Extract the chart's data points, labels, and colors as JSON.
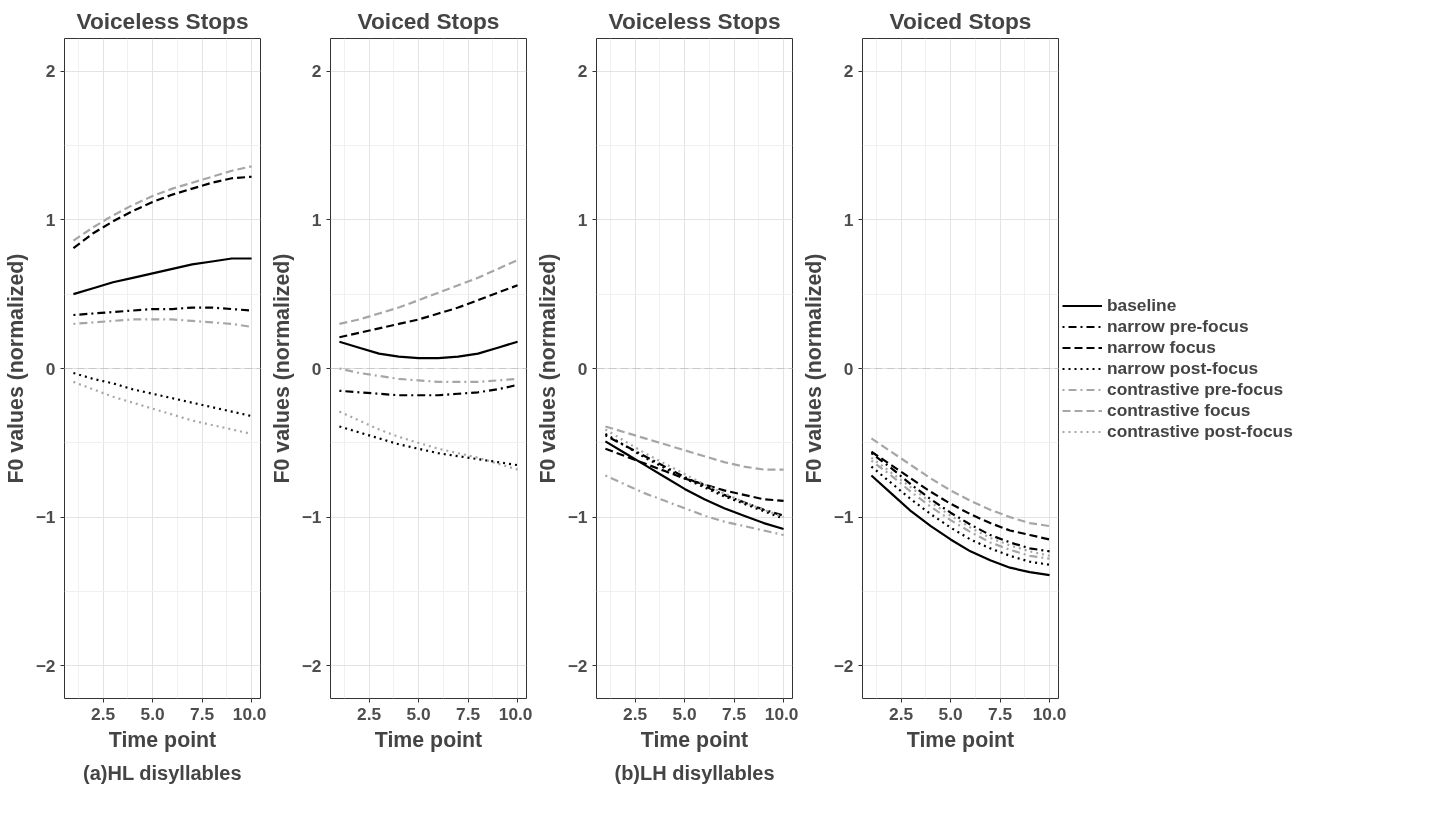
{
  "chart_data": [
    {
      "type": "line",
      "title": "Voiceless Stops",
      "xlabel": "Time point",
      "ylabel": "F0 values (normalized)",
      "annotations": [
        "(a)HL disyllables"
      ],
      "x": [
        1,
        2,
        3,
        4,
        5,
        6,
        7,
        8,
        9,
        10
      ],
      "xlim": [
        0.55,
        10.45
      ],
      "ylim": [
        -2.22,
        2.22
      ],
      "xticks": [
        {
          "value": 2.5,
          "label": "2.5"
        },
        {
          "value": 5,
          "label": "5.0"
        },
        {
          "value": 7.5,
          "label": "7.5"
        },
        {
          "value": 10,
          "label": "10.0"
        }
      ],
      "yticks": [
        -2,
        -1,
        0,
        1,
        2
      ],
      "grid": true,
      "legend": false,
      "ref_lines": [
        {
          "axis": "y",
          "value": 0,
          "color": "#c8c8c8",
          "line_style": "dashed"
        }
      ],
      "series": [
        {
          "color": "#000000",
          "line_style": "solid",
          "values": [
            0.5,
            0.54,
            0.58,
            0.61,
            0.64,
            0.67,
            0.7,
            0.72,
            0.74,
            0.74
          ]
        },
        {
          "color": "#000000",
          "line_style": "dashdot",
          "values": [
            0.36,
            0.37,
            0.38,
            0.39,
            0.4,
            0.4,
            0.41,
            0.41,
            0.4,
            0.39
          ]
        },
        {
          "color": "#000000",
          "line_style": "dashed",
          "values": [
            0.81,
            0.91,
            0.99,
            1.06,
            1.12,
            1.17,
            1.21,
            1.25,
            1.28,
            1.29
          ]
        },
        {
          "color": "#000000",
          "line_style": "dotted",
          "values": [
            -0.03,
            -0.07,
            -0.1,
            -0.14,
            -0.17,
            -0.2,
            -0.23,
            -0.26,
            -0.29,
            -0.32
          ]
        },
        {
          "color": "#a6a6a6",
          "line_style": "dashdot",
          "values": [
            0.3,
            0.31,
            0.32,
            0.33,
            0.33,
            0.33,
            0.32,
            0.31,
            0.3,
            0.28
          ]
        },
        {
          "color": "#a6a6a6",
          "line_style": "dashed",
          "values": [
            0.86,
            0.95,
            1.03,
            1.1,
            1.16,
            1.21,
            1.25,
            1.29,
            1.33,
            1.36
          ]
        },
        {
          "color": "#a6a6a6",
          "line_style": "dotted",
          "values": [
            -0.09,
            -0.14,
            -0.19,
            -0.23,
            -0.27,
            -0.31,
            -0.35,
            -0.38,
            -0.41,
            -0.44
          ]
        }
      ]
    },
    {
      "type": "line",
      "title": "Voiced Stops",
      "xlabel": "Time point",
      "ylabel": "F0 values (normalized)",
      "x": [
        1,
        2,
        3,
        4,
        5,
        6,
        7,
        8,
        9,
        10
      ],
      "xlim": [
        0.55,
        10.45
      ],
      "ylim": [
        -2.22,
        2.22
      ],
      "xticks": [
        {
          "value": 2.5,
          "label": "2.5"
        },
        {
          "value": 5,
          "label": "5.0"
        },
        {
          "value": 7.5,
          "label": "7.5"
        },
        {
          "value": 10,
          "label": "10.0"
        }
      ],
      "yticks": [
        -2,
        -1,
        0,
        1,
        2
      ],
      "grid": true,
      "legend": false,
      "ref_lines": [
        {
          "axis": "y",
          "value": 0,
          "color": "#c8c8c8",
          "line_style": "dashed"
        }
      ],
      "series": [
        {
          "color": "#000000",
          "line_style": "solid",
          "values": [
            0.18,
            0.14,
            0.1,
            0.08,
            0.07,
            0.07,
            0.08,
            0.1,
            0.14,
            0.18
          ]
        },
        {
          "color": "#000000",
          "line_style": "dashdot",
          "values": [
            -0.15,
            -0.16,
            -0.17,
            -0.18,
            -0.18,
            -0.18,
            -0.17,
            -0.16,
            -0.14,
            -0.11
          ]
        },
        {
          "color": "#000000",
          "line_style": "dashed",
          "values": [
            0.21,
            0.24,
            0.27,
            0.3,
            0.33,
            0.37,
            0.41,
            0.46,
            0.51,
            0.56
          ]
        },
        {
          "color": "#000000",
          "line_style": "dotted",
          "values": [
            -0.39,
            -0.43,
            -0.47,
            -0.51,
            -0.54,
            -0.57,
            -0.59,
            -0.61,
            -0.63,
            -0.65
          ]
        },
        {
          "color": "#a6a6a6",
          "line_style": "dashdot",
          "values": [
            0.0,
            -0.03,
            -0.05,
            -0.07,
            -0.08,
            -0.09,
            -0.09,
            -0.09,
            -0.08,
            -0.07
          ]
        },
        {
          "color": "#a6a6a6",
          "line_style": "dashed",
          "values": [
            0.3,
            0.33,
            0.37,
            0.41,
            0.46,
            0.51,
            0.56,
            0.61,
            0.67,
            0.73
          ]
        },
        {
          "color": "#a6a6a6",
          "line_style": "dotted",
          "values": [
            -0.29,
            -0.35,
            -0.41,
            -0.46,
            -0.5,
            -0.54,
            -0.57,
            -0.6,
            -0.64,
            -0.68
          ]
        }
      ]
    },
    {
      "type": "line",
      "title": "Voiceless Stops",
      "xlabel": "Time point",
      "ylabel": "F0 values (normalized)",
      "annotations": [
        "(b)LH disyllables"
      ],
      "x": [
        1,
        2,
        3,
        4,
        5,
        6,
        7,
        8,
        9,
        10
      ],
      "xlim": [
        0.55,
        10.45
      ],
      "ylim": [
        -2.22,
        2.22
      ],
      "xticks": [
        {
          "value": 2.5,
          "label": "2.5"
        },
        {
          "value": 5,
          "label": "5.0"
        },
        {
          "value": 7.5,
          "label": "7.5"
        },
        {
          "value": 10,
          "label": "10.0"
        }
      ],
      "yticks": [
        -2,
        -1,
        0,
        1,
        2
      ],
      "grid": true,
      "legend": false,
      "ref_lines": [
        {
          "axis": "y",
          "value": 0,
          "color": "#c8c8c8",
          "line_style": "dashed"
        }
      ],
      "series": [
        {
          "color": "#000000",
          "line_style": "solid",
          "values": [
            -0.49,
            -0.57,
            -0.65,
            -0.73,
            -0.81,
            -0.88,
            -0.94,
            -0.99,
            -1.04,
            -1.08
          ]
        },
        {
          "color": "#000000",
          "line_style": "dashdot",
          "values": [
            -0.45,
            -0.52,
            -0.59,
            -0.66,
            -0.73,
            -0.79,
            -0.85,
            -0.9,
            -0.95,
            -0.99
          ]
        },
        {
          "color": "#000000",
          "line_style": "dashed",
          "values": [
            -0.54,
            -0.59,
            -0.64,
            -0.69,
            -0.74,
            -0.78,
            -0.82,
            -0.85,
            -0.88,
            -0.89
          ]
        },
        {
          "color": "#000000",
          "line_style": "dotted",
          "values": [
            -0.44,
            -0.52,
            -0.6,
            -0.67,
            -0.74,
            -0.8,
            -0.86,
            -0.91,
            -0.96,
            -1.01
          ]
        },
        {
          "color": "#a6a6a6",
          "line_style": "dashdot",
          "values": [
            -0.72,
            -0.78,
            -0.84,
            -0.89,
            -0.94,
            -0.99,
            -1.03,
            -1.06,
            -1.09,
            -1.12
          ]
        },
        {
          "color": "#a6a6a6",
          "line_style": "dashed",
          "values": [
            -0.39,
            -0.43,
            -0.47,
            -0.51,
            -0.55,
            -0.59,
            -0.63,
            -0.66,
            -0.68,
            -0.68
          ]
        },
        {
          "color": "#a6a6a6",
          "line_style": "dotted",
          "values": [
            -0.41,
            -0.49,
            -0.57,
            -0.64,
            -0.71,
            -0.78,
            -0.84,
            -0.9,
            -0.95,
            -1.0
          ]
        }
      ]
    },
    {
      "type": "line",
      "title": "Voiced Stops",
      "xlabel": "Time point",
      "ylabel": "F0 values (normalized)",
      "x": [
        1,
        2,
        3,
        4,
        5,
        6,
        7,
        8,
        9,
        10
      ],
      "xlim": [
        0.55,
        10.45
      ],
      "ylim": [
        -2.22,
        2.22
      ],
      "xticks": [
        {
          "value": 2.5,
          "label": "2.5"
        },
        {
          "value": 5,
          "label": "5.0"
        },
        {
          "value": 7.5,
          "label": "7.5"
        },
        {
          "value": 10,
          "label": "10.0"
        }
      ],
      "yticks": [
        -2,
        -1,
        0,
        1,
        2
      ],
      "grid": true,
      "legend": "right",
      "ref_lines": [
        {
          "axis": "y",
          "value": 0,
          "color": "#c8c8c8",
          "line_style": "dashed"
        }
      ],
      "series": [
        {
          "name": "baseline",
          "color": "#000000",
          "line_style": "solid",
          "values": [
            -0.72,
            -0.84,
            -0.96,
            -1.06,
            -1.15,
            -1.23,
            -1.29,
            -1.34,
            -1.37,
            -1.39
          ]
        },
        {
          "name": "narrow pre-focus",
          "color": "#000000",
          "line_style": "dashdot",
          "values": [
            -0.57,
            -0.67,
            -0.78,
            -0.88,
            -0.97,
            -1.05,
            -1.12,
            -1.17,
            -1.21,
            -1.23
          ]
        },
        {
          "name": "narrow focus",
          "color": "#000000",
          "line_style": "dashed",
          "values": [
            -0.56,
            -0.65,
            -0.74,
            -0.83,
            -0.91,
            -0.98,
            -1.04,
            -1.09,
            -1.12,
            -1.15
          ]
        },
        {
          "name": "narrow post-focus",
          "color": "#000000",
          "line_style": "dotted",
          "values": [
            -0.66,
            -0.77,
            -0.88,
            -0.98,
            -1.07,
            -1.15,
            -1.21,
            -1.26,
            -1.3,
            -1.32
          ]
        },
        {
          "name": "contrastive pre-focus",
          "color": "#a6a6a6",
          "line_style": "dashdot",
          "values": [
            -0.62,
            -0.72,
            -0.83,
            -0.93,
            -1.02,
            -1.1,
            -1.17,
            -1.22,
            -1.26,
            -1.28
          ]
        },
        {
          "name": "contrastive focus",
          "color": "#a6a6a6",
          "line_style": "dashed",
          "values": [
            -0.47,
            -0.56,
            -0.65,
            -0.74,
            -0.82,
            -0.89,
            -0.95,
            -1.0,
            -1.04,
            -1.06
          ]
        },
        {
          "name": "contrastive post-focus",
          "color": "#a6a6a6",
          "line_style": "dotted",
          "values": [
            -0.6,
            -0.7,
            -0.8,
            -0.9,
            -0.99,
            -1.07,
            -1.14,
            -1.19,
            -1.23,
            -1.26
          ]
        }
      ]
    }
  ]
}
